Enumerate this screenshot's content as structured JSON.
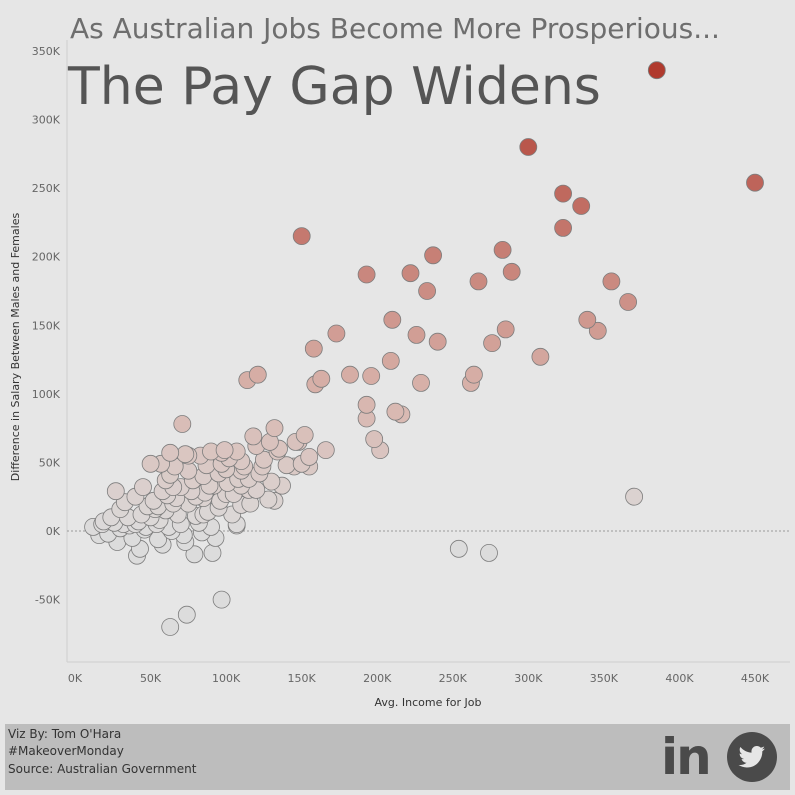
{
  "header": {
    "subtitle": "As Australian Jobs Become More Prosperious...",
    "title": "The Pay Gap Widens"
  },
  "footer": {
    "viz_by": "Viz By: Tom O'Hara",
    "hashtag": "#MakeoverMonday",
    "source": "Source: Australian Government",
    "linkedin_text": "in",
    "linkedin_icon": "linkedin-icon",
    "twitter_icon": "twitter-icon"
  },
  "chart_data": {
    "type": "scatter",
    "xlabel": "Avg. Income for Job",
    "ylabel": "Difference in Salary Between Males and Females",
    "xlim": [
      0,
      480000
    ],
    "ylim": [
      -80000,
      360000
    ],
    "x_ticks": [
      "0K",
      "50K",
      "100K",
      "150K",
      "200K",
      "250K",
      "300K",
      "350K",
      "400K",
      "450K"
    ],
    "y_ticks": [
      "-50K",
      "0K",
      "50K",
      "100K",
      "150K",
      "200K",
      "250K",
      "300K",
      "350K"
    ],
    "x_tick_values": [
      0,
      50000,
      100000,
      150000,
      200000,
      250000,
      300000,
      350000,
      400000,
      450000
    ],
    "y_tick_values": [
      -50000,
      0,
      50000,
      100000,
      150000,
      200000,
      250000,
      300000,
      350000
    ],
    "zero_reference_line": true,
    "grid": false,
    "color_scale": {
      "low": "#dcdcdc",
      "mid": "#d8b4ac",
      "high": "#b03a2e"
    },
    "points": [
      [
        385000,
        336000
      ],
      [
        300000,
        280000
      ],
      [
        450000,
        254000
      ],
      [
        323000,
        246000
      ],
      [
        335000,
        237000
      ],
      [
        323000,
        221000
      ],
      [
        150000,
        215000
      ],
      [
        283000,
        205000
      ],
      [
        237000,
        201000
      ],
      [
        193000,
        187000
      ],
      [
        222000,
        188000
      ],
      [
        289000,
        189000
      ],
      [
        267000,
        182000
      ],
      [
        355000,
        182000
      ],
      [
        233000,
        175000
      ],
      [
        366000,
        167000
      ],
      [
        210000,
        154000
      ],
      [
        339000,
        154000
      ],
      [
        173000,
        144000
      ],
      [
        226000,
        143000
      ],
      [
        285000,
        147000
      ],
      [
        346000,
        146000
      ],
      [
        240000,
        138000
      ],
      [
        158000,
        133000
      ],
      [
        276000,
        137000
      ],
      [
        308000,
        127000
      ],
      [
        209000,
        124000
      ],
      [
        264000,
        114000
      ],
      [
        182000,
        114000
      ],
      [
        196000,
        113000
      ],
      [
        121000,
        114000
      ],
      [
        114000,
        110000
      ],
      [
        163000,
        111000
      ],
      [
        159000,
        107000
      ],
      [
        229000,
        108000
      ],
      [
        262000,
        108000
      ],
      [
        193000,
        92000
      ],
      [
        212000,
        87000
      ],
      [
        193000,
        82000
      ],
      [
        216000,
        85000
      ],
      [
        370000,
        25000
      ],
      [
        132000,
        75000
      ],
      [
        118000,
        69000
      ],
      [
        152000,
        70000
      ],
      [
        129000,
        65000
      ],
      [
        148000,
        65000
      ],
      [
        166000,
        59000
      ],
      [
        134000,
        58000
      ],
      [
        107000,
        58000
      ],
      [
        97000,
        57000
      ],
      [
        63000,
        57000
      ],
      [
        83000,
        55000
      ],
      [
        57000,
        49000
      ],
      [
        50000,
        49000
      ],
      [
        73000,
        56000
      ],
      [
        102000,
        53000
      ],
      [
        155000,
        54000
      ],
      [
        198000,
        67000
      ],
      [
        202000,
        59000
      ],
      [
        125000,
        52000
      ],
      [
        140000,
        48000
      ],
      [
        155000,
        47000
      ],
      [
        110000,
        44000
      ],
      [
        122000,
        42000
      ],
      [
        75000,
        44000
      ],
      [
        95000,
        42000
      ],
      [
        63000,
        41000
      ],
      [
        85000,
        40000
      ],
      [
        108000,
        38000
      ],
      [
        130000,
        36000
      ],
      [
        92000,
        33000
      ],
      [
        115000,
        30000
      ],
      [
        70000,
        32000
      ],
      [
        45000,
        32000
      ],
      [
        58000,
        29000
      ],
      [
        27000,
        29000
      ],
      [
        40000,
        25000
      ],
      [
        100000,
        27000
      ],
      [
        132000,
        22000
      ],
      [
        85000,
        24000
      ],
      [
        67000,
        24000
      ],
      [
        52000,
        22000
      ],
      [
        116000,
        20000
      ],
      [
        75000,
        20000
      ],
      [
        95000,
        17000
      ],
      [
        60000,
        15000
      ],
      [
        44000,
        12000
      ],
      [
        80000,
        11000
      ],
      [
        104000,
        12000
      ],
      [
        35000,
        10000
      ],
      [
        56000,
        8000
      ],
      [
        26000,
        6000
      ],
      [
        70000,
        5000
      ],
      [
        90000,
        3000
      ],
      [
        107000,
        4000
      ],
      [
        18000,
        5000
      ],
      [
        30000,
        2000
      ],
      [
        46000,
        1000
      ],
      [
        64000,
        0
      ],
      [
        84000,
        -1000
      ],
      [
        12000,
        3000
      ],
      [
        22000,
        -2000
      ],
      [
        38000,
        -5000
      ],
      [
        55000,
        -6000
      ],
      [
        72000,
        -3000
      ],
      [
        93000,
        -5000
      ],
      [
        16000,
        -3000
      ],
      [
        28000,
        -8000
      ],
      [
        43000,
        -13000
      ],
      [
        58000,
        -10000
      ],
      [
        73000,
        -8000
      ],
      [
        41000,
        -18000
      ],
      [
        79000,
        -17000
      ],
      [
        91000,
        -16000
      ],
      [
        254000,
        -13000
      ],
      [
        274000,
        -16000
      ],
      [
        71000,
        78000
      ],
      [
        146000,
        65000
      ],
      [
        135000,
        60000
      ],
      [
        150000,
        49000
      ],
      [
        90000,
        58000
      ],
      [
        124000,
        47000
      ],
      [
        112000,
        47000
      ],
      [
        100000,
        45000
      ],
      [
        87000,
        48000
      ],
      [
        66000,
        47000
      ],
      [
        78000,
        37000
      ],
      [
        101000,
        35000
      ],
      [
        120000,
        30000
      ],
      [
        137000,
        33000
      ],
      [
        86000,
        28000
      ],
      [
        61000,
        26000
      ],
      [
        48000,
        18000
      ],
      [
        33000,
        21000
      ],
      [
        96000,
        22000
      ],
      [
        110000,
        19000
      ],
      [
        68000,
        12000
      ],
      [
        50000,
        10000
      ],
      [
        42000,
        7000
      ],
      [
        32000,
        5000
      ],
      [
        82000,
        6000
      ],
      [
        62000,
        3000
      ],
      [
        24000,
        10000
      ],
      [
        99000,
        59000
      ],
      [
        97000,
        -50000
      ],
      [
        74000,
        -61000
      ],
      [
        63000,
        -70000
      ],
      [
        110000,
        33000
      ],
      [
        128000,
        23000
      ],
      [
        53000,
        16000
      ],
      [
        65000,
        20000
      ],
      [
        77000,
        29000
      ],
      [
        89000,
        33000
      ],
      [
        54000,
        5000
      ],
      [
        36000,
        4000
      ],
      [
        19000,
        7000
      ],
      [
        47000,
        3000
      ],
      [
        105000,
        27000
      ],
      [
        115000,
        38000
      ],
      [
        60000,
        37000
      ],
      [
        145000,
        47000
      ],
      [
        120000,
        62000
      ],
      [
        88000,
        14000
      ],
      [
        107000,
        5000
      ],
      [
        55000,
        18000
      ],
      [
        30000,
        16000
      ],
      [
        40000,
        5000
      ],
      [
        85000,
        12000
      ],
      [
        75000,
        55000
      ],
      [
        97000,
        49000
      ],
      [
        110000,
        51000
      ],
      [
        80000,
        25000
      ],
      [
        65000,
        32000
      ]
    ]
  }
}
